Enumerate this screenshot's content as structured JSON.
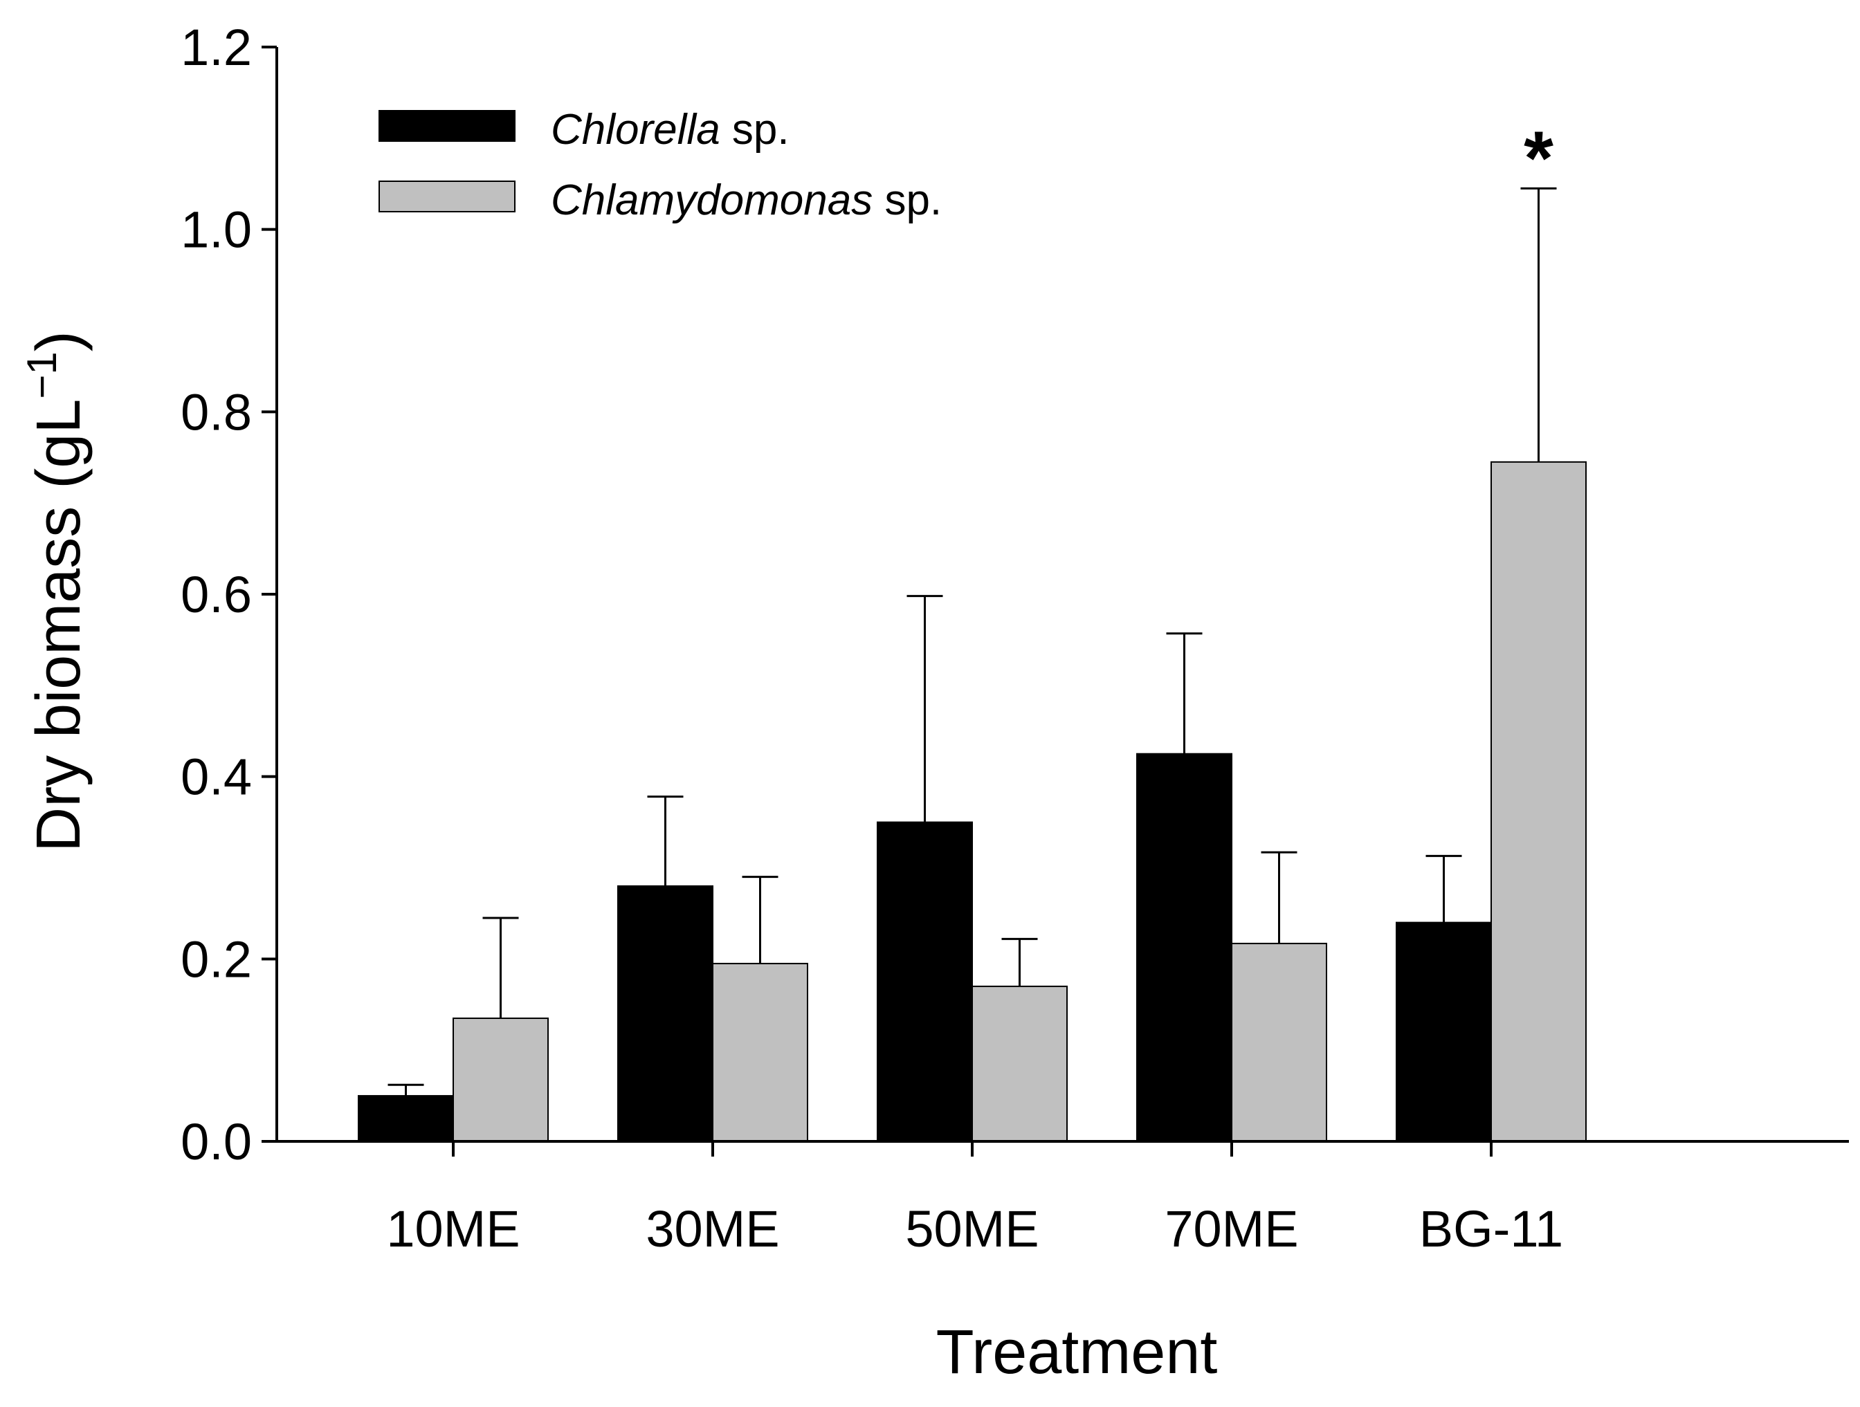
{
  "chart_data": {
    "type": "bar",
    "title": "",
    "xlabel": "Treatment",
    "ylabel": "Dry biomass (gL",
    "ylabel_superscript": "−1",
    "ylabel_close": ")",
    "categories": [
      "10ME",
      "30ME",
      "50ME",
      "70ME",
      "BG-11"
    ],
    "ylim": [
      0,
      1.2
    ],
    "yticks": [
      0.0,
      0.2,
      0.4,
      0.6,
      0.8,
      1.0,
      1.2
    ],
    "ytick_labels": [
      "0.0",
      "0.2",
      "0.4",
      "0.6",
      "0.8",
      "1.0",
      "1.2"
    ],
    "grid": false,
    "legend_position": "top-left",
    "error_bars": "upper only",
    "series": [
      {
        "name": "Chlorella",
        "name_suffix": " sp.",
        "color": "#000000",
        "values": [
          0.05,
          0.28,
          0.35,
          0.425,
          0.24
        ],
        "errors": [
          0.012,
          0.098,
          0.248,
          0.132,
          0.073
        ]
      },
      {
        "name": "Chlamydomonas",
        "name_suffix": " sp.",
        "color": "#c0c0c0",
        "values": [
          0.135,
          0.195,
          0.17,
          0.217,
          0.745
        ],
        "errors": [
          0.11,
          0.095,
          0.052,
          0.1,
          0.3
        ]
      }
    ],
    "annotations": [
      {
        "text": "*",
        "category": "BG-11",
        "series_index": 1
      }
    ]
  }
}
